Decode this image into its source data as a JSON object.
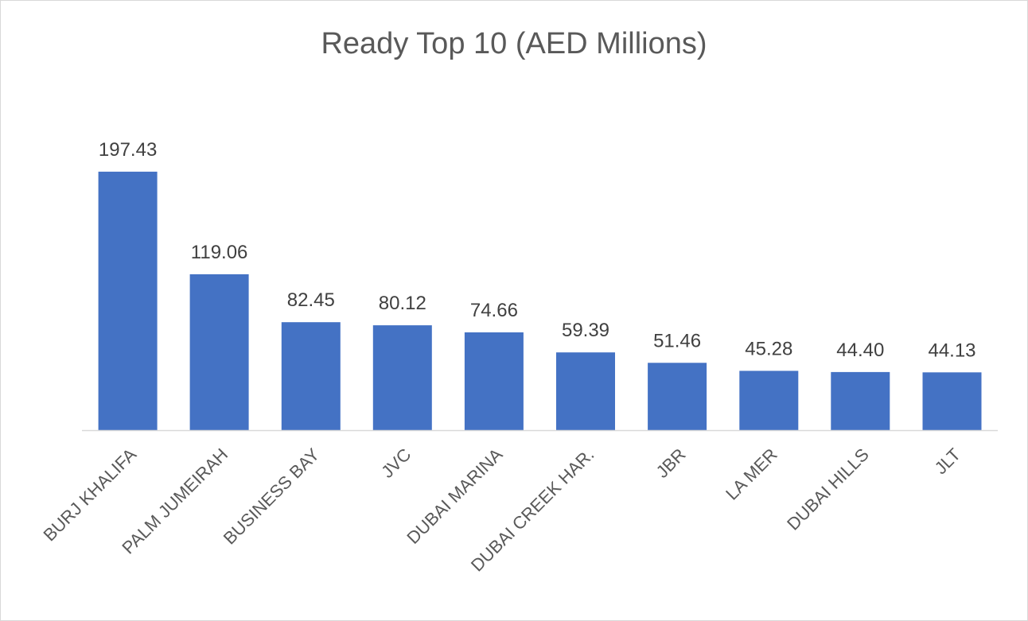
{
  "chart_data": {
    "type": "bar",
    "title": "Ready Top 10 (AED Millions)",
    "categories": [
      "BURJ KHALIFA",
      "PALM JUMEIRAH",
      "BUSINESS BAY",
      "JVC",
      "DUBAI MARINA",
      "DUBAI CREEK HAR.",
      "JBR",
      "LA MER",
      "DUBAI HILLS",
      "JLT"
    ],
    "values": [
      197.43,
      119.06,
      82.45,
      80.12,
      74.66,
      59.39,
      51.46,
      45.28,
      44.4,
      44.13
    ],
    "data_labels": [
      "197.43",
      "119.06",
      "82.45",
      "80.12",
      "74.66",
      "59.39",
      "51.46",
      "45.28",
      "44.40",
      "44.13"
    ],
    "ylim": [
      0,
      200
    ],
    "bar_color": "#4472c4",
    "axis_color": "#d9d9d9",
    "grid": false,
    "legend": "none"
  }
}
